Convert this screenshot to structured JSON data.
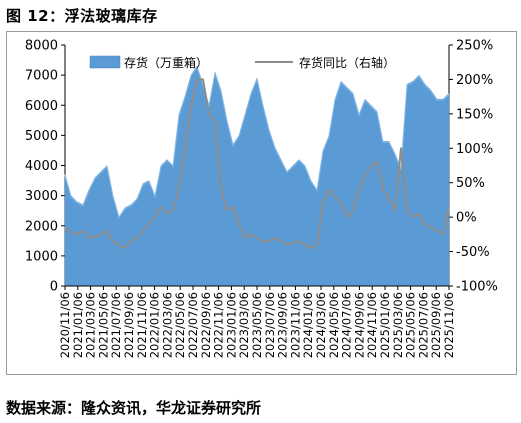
{
  "title": "图 12：浮法玻璃库存",
  "source": "数据来源：隆众资讯，华龙证券研究所",
  "colors": {
    "bar": "#5b9bd5",
    "bar_light": "#8ec0ea",
    "line": "#8c8c8c"
  },
  "chart_data": {
    "type": "area",
    "series": [
      {
        "name": "存货（万重箱）",
        "axis": "left",
        "values": [
          3700,
          3000,
          2800,
          2700,
          3200,
          3600,
          3800,
          4000,
          3000,
          2300,
          2600,
          2700,
          2900,
          3400,
          3500,
          3000,
          4000,
          4200,
          4000,
          5700,
          6300,
          7000,
          7300,
          6700,
          6000,
          7100,
          6500,
          5500,
          4700,
          5000,
          5700,
          6400,
          6900,
          6000,
          5200,
          4600,
          4200,
          3800,
          4000,
          4200,
          4000,
          3500,
          3200,
          4500,
          5000,
          6200,
          6800,
          6600,
          6400,
          5700,
          6200,
          6000,
          5800,
          4800,
          4800,
          4400,
          3900,
          6700,
          6800,
          7000,
          6700,
          6500,
          6200,
          6200,
          6400
        ]
      },
      {
        "name": "存货同比（右轴）",
        "axis": "right",
        "values": [
          -15,
          -22,
          -25,
          -20,
          -30,
          -28,
          -25,
          -20,
          -35,
          -40,
          -45,
          -35,
          -30,
          -20,
          -10,
          0,
          15,
          5,
          10,
          40,
          100,
          160,
          200,
          200,
          150,
          140,
          40,
          10,
          15,
          -10,
          -30,
          -25,
          -30,
          -35,
          -35,
          -30,
          -35,
          -40,
          -38,
          -35,
          -40,
          -45,
          -40,
          20,
          40,
          30,
          20,
          0,
          10,
          40,
          60,
          75,
          80,
          40,
          25,
          10,
          100,
          10,
          0,
          5,
          -10,
          -15,
          -20,
          -25,
          15
        ]
      }
    ],
    "x_tick_labels": [
      "2020/11/06",
      "2021/01/06",
      "2021/03/06",
      "2021/05/06",
      "2021/07/06",
      "2021/09/06",
      "2021/11/06",
      "2022/01/06",
      "2022/03/06",
      "2022/05/06",
      "2022/07/06",
      "2022/09/06",
      "2022/11/06",
      "2023/01/06",
      "2023/03/06",
      "2023/05/06",
      "2023/07/06",
      "2023/09/06",
      "2023/11/06",
      "2024/01/06",
      "2024/03/06",
      "2024/05/06",
      "2024/07/06",
      "2024/09/06",
      "2024/11/06",
      "2025/01/06",
      "2025/03/06",
      "2025/05/06",
      "2025/07/06",
      "2025/09/06",
      "2025/11/06"
    ],
    "y_left": {
      "ticks": [
        "0",
        "1000",
        "2000",
        "3000",
        "4000",
        "5000",
        "6000",
        "7000",
        "8000"
      ],
      "min": 0,
      "max": 8000
    },
    "y_right": {
      "ticks": [
        "-100%",
        "-50%",
        "0%",
        "50%",
        "100%",
        "150%",
        "200%",
        "250%"
      ],
      "min": -100,
      "max": 250
    },
    "legend": [
      {
        "label": "存货（万重箱）"
      },
      {
        "label": "存货同比（右轴）"
      }
    ],
    "legend_position": "top",
    "grid": false
  }
}
